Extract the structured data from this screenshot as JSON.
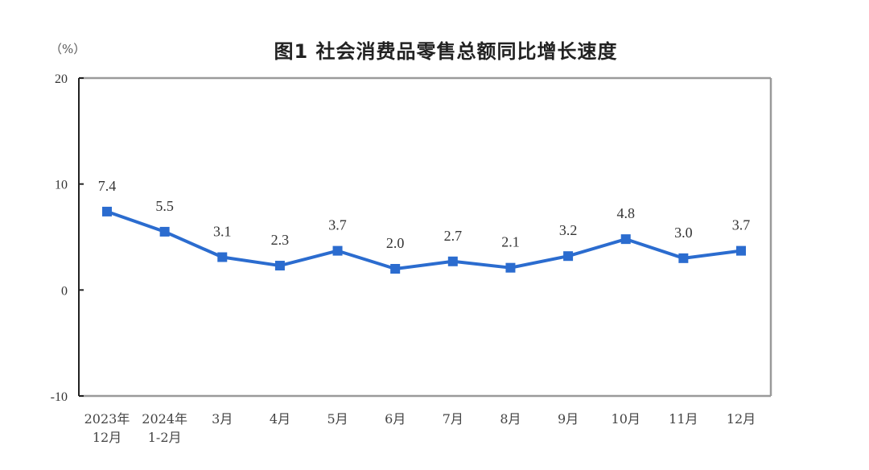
{
  "chart_data": {
    "type": "line",
    "title": "图1  社会消费品零售总额同比增长速度",
    "ylabel": "（%）",
    "xlabel": "",
    "ylim": [
      -10,
      20
    ],
    "yticks": [
      20,
      10,
      0,
      -10
    ],
    "grid": false,
    "legend": null,
    "categories": [
      [
        "2023年",
        "12月"
      ],
      [
        "2024年",
        "1-2月"
      ],
      [
        "3月"
      ],
      [
        "4月"
      ],
      [
        "5月"
      ],
      [
        "6月"
      ],
      [
        "7月"
      ],
      [
        "8月"
      ],
      [
        "9月"
      ],
      [
        "10月"
      ],
      [
        "11月"
      ],
      [
        "12月"
      ]
    ],
    "series": [
      {
        "name": "社会消费品零售总额同比增长速度",
        "values": [
          7.4,
          5.5,
          3.1,
          2.3,
          3.7,
          2.0,
          2.7,
          2.1,
          3.2,
          4.8,
          3.0,
          3.7
        ],
        "labels": [
          "7.4",
          "5.5",
          "3.1",
          "2.3",
          "3.7",
          "2.0",
          "2.7",
          "2.1",
          "3.2",
          "4.8",
          "3.0",
          "3.7"
        ],
        "color": "#2b6ccf",
        "marker": "square"
      }
    ]
  },
  "colors": {
    "line": "#2b6ccf",
    "axis": "#222222",
    "frame": "#9a9a9a"
  }
}
